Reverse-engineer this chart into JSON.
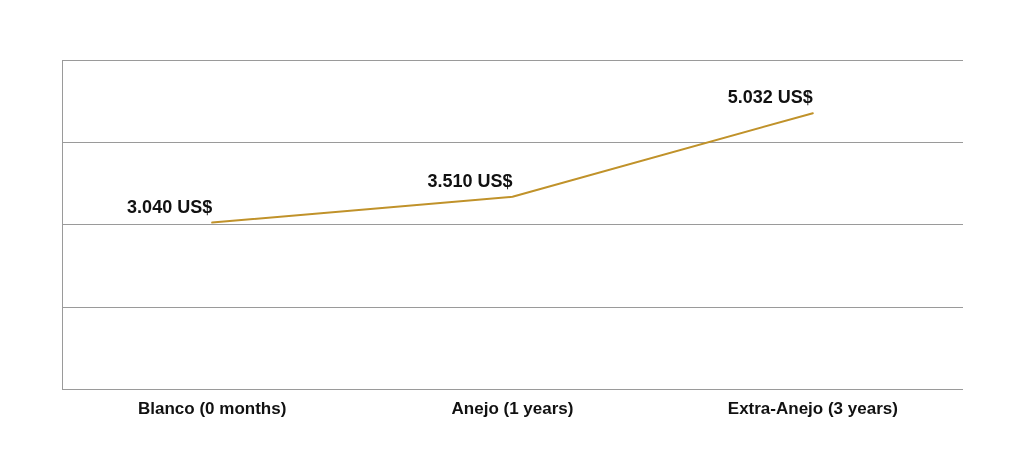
{
  "chart_data": {
    "type": "line",
    "categories": [
      "Blanco (0 months)",
      "Anejo (1 years)",
      "Extra-Anejo (3 years)"
    ],
    "series": [
      {
        "color": "#c0922a",
        "values": [
          3.04,
          3.51,
          5.032
        ],
        "value_labels": [
          "3.040 US$",
          "3.510 US$",
          "5.032 US$"
        ]
      }
    ],
    "ylim": [
      0,
      6
    ],
    "yticks": [
      {
        "value": 0,
        "label": null
      },
      {
        "value": 1.5,
        "label": null
      },
      {
        "value": 3,
        "label": null
      },
      {
        "value": 4.5,
        "label": null
      },
      {
        "value": 6,
        "label": null
      }
    ],
    "tick_labels": "x",
    "grid": "y",
    "legend": false,
    "marker": "none",
    "line_style": "solid"
  }
}
